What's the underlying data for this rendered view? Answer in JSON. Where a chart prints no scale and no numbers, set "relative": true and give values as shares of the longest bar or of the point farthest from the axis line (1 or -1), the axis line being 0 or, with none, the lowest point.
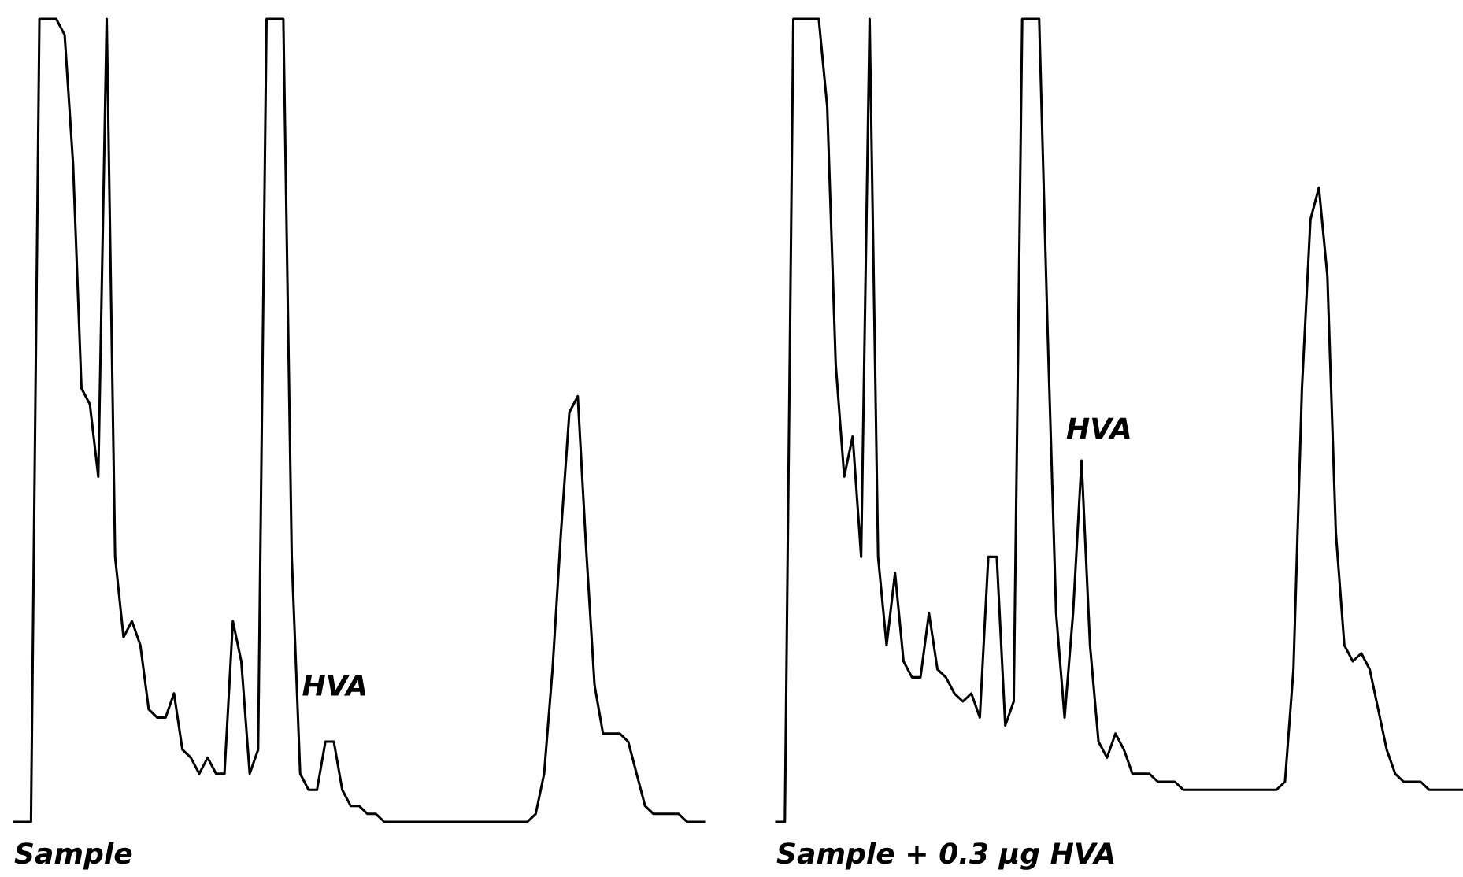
{
  "chart_data": [
    {
      "type": "line",
      "title": "Sample",
      "relative": true,
      "categories": [
        null,
        null,
        null,
        null,
        null,
        null,
        null,
        null,
        null,
        null,
        null,
        null,
        null,
        null,
        null,
        null,
        null,
        null,
        null,
        null,
        null,
        null,
        null,
        null,
        null,
        null,
        null,
        null,
        null,
        null,
        null,
        null,
        null,
        null,
        null,
        null,
        null,
        null,
        null,
        null,
        null,
        null,
        null,
        null,
        null,
        null,
        null,
        null,
        null,
        null,
        null,
        null,
        null,
        null,
        null,
        null,
        null,
        null,
        null,
        null,
        null,
        null,
        null,
        null,
        null,
        null,
        null,
        null,
        null,
        null,
        null,
        null,
        null,
        null,
        null,
        null,
        null,
        null,
        null,
        null,
        null,
        null,
        null
      ],
      "series": [
        {
          "color": "#000000",
          "values": [
            0,
            0,
            0,
            1,
            1,
            1,
            0.98,
            0.82,
            0.54,
            0.52,
            0.43,
            1,
            0.33,
            0.23,
            0.25,
            0.22,
            0.14,
            0.13,
            0.13,
            0.16,
            0.09,
            0.08,
            0.06,
            0.08,
            0.06,
            0.06,
            0.25,
            0.2,
            0.06,
            0.09,
            1,
            1,
            1,
            0.33,
            0.06,
            0.04,
            0.04,
            0.1,
            0.1,
            0.04,
            0.02,
            0.02,
            0.01,
            0.01,
            0,
            0,
            0,
            0,
            0,
            0,
            0,
            0,
            0,
            0,
            0,
            0,
            0,
            0,
            0,
            0,
            0,
            0,
            0.01,
            0.06,
            0.19,
            0.36,
            0.51,
            0.53,
            0.34,
            0.17,
            0.11,
            0.11,
            0.11,
            0.1,
            0.06,
            0.02,
            0.01,
            0.01,
            0.01,
            0.01,
            0,
            0,
            0
          ]
        }
      ],
      "annotations": [
        "HVA"
      ]
    },
    {
      "type": "line",
      "title": "Sample + 0.3 µg HVA",
      "relative": true,
      "categories": [
        null,
        null,
        null,
        null,
        null,
        null,
        null,
        null,
        null,
        null,
        null,
        null,
        null,
        null,
        null,
        null,
        null,
        null,
        null,
        null,
        null,
        null,
        null,
        null,
        null,
        null,
        null,
        null,
        null,
        null,
        null,
        null,
        null,
        null,
        null,
        null,
        null,
        null,
        null,
        null,
        null,
        null,
        null,
        null,
        null,
        null,
        null,
        null,
        null,
        null,
        null,
        null,
        null,
        null,
        null,
        null,
        null,
        null,
        null,
        null,
        null,
        null,
        null,
        null,
        null,
        null,
        null,
        null,
        null,
        null,
        null,
        null,
        null,
        null,
        null,
        null,
        null,
        null,
        null,
        null,
        null,
        null
      ],
      "series": [
        {
          "color": "#000000",
          "values": [
            0,
            0,
            1,
            1,
            1,
            1,
            0.89,
            0.57,
            0.43,
            0.48,
            0.33,
            1,
            0.33,
            0.22,
            0.31,
            0.2,
            0.18,
            0.18,
            0.26,
            0.19,
            0.18,
            0.16,
            0.15,
            0.16,
            0.13,
            0.33,
            0.33,
            0.12,
            0.15,
            1,
            1,
            1,
            0.61,
            0.26,
            0.13,
            0.26,
            0.45,
            0.22,
            0.1,
            0.08,
            0.11,
            0.09,
            0.06,
            0.06,
            0.06,
            0.05,
            0.05,
            0.05,
            0.04,
            0.04,
            0.04,
            0.04,
            0.04,
            0.04,
            0.04,
            0.04,
            0.04,
            0.04,
            0.04,
            0.04,
            0.05,
            0.19,
            0.54,
            0.75,
            0.79,
            0.68,
            0.36,
            0.22,
            0.2,
            0.21,
            0.19,
            0.14,
            0.09,
            0.06,
            0.05,
            0.05,
            0.05,
            0.04,
            0.04,
            0.04,
            0.04,
            0.04
          ]
        }
      ],
      "annotations": [
        "HVA"
      ]
    }
  ]
}
